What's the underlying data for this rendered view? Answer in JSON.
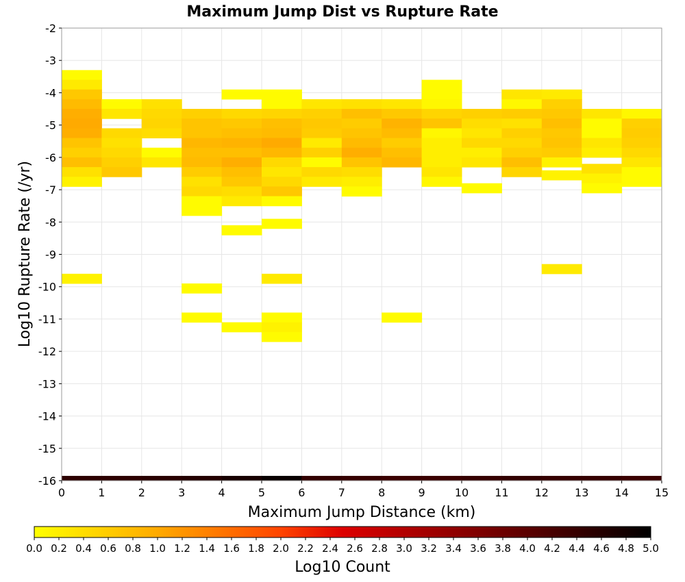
{
  "chart_data": {
    "type": "heatmap",
    "title": "Maximum Jump Dist vs Rupture Rate",
    "xlabel": "Maximum Jump Distance (km)",
    "ylabel": "Log10 Rupture Rate (/yr)",
    "xlim": [
      0,
      15
    ],
    "ylim": [
      -16,
      -2
    ],
    "x_ticks": [
      "0",
      "1",
      "2",
      "3",
      "4",
      "5",
      "6",
      "7",
      "8",
      "9",
      "10",
      "11",
      "12",
      "13",
      "14",
      "15"
    ],
    "y_ticks": [
      "-2",
      "-3",
      "-4",
      "-5",
      "-6",
      "-7",
      "-8",
      "-9",
      "-10",
      "-11",
      "-12",
      "-13",
      "-14",
      "-15",
      "-16"
    ],
    "grid": true,
    "colorbar": {
      "label": "Log10 Count",
      "range": [
        0,
        5
      ],
      "ticks": [
        "0.0",
        "0.2",
        "0.4",
        "0.6",
        "0.8",
        "1.0",
        "1.2",
        "1.4",
        "1.6",
        "1.8",
        "2.0",
        "2.2",
        "2.4",
        "2.6",
        "2.8",
        "3.0",
        "3.2",
        "3.4",
        "3.6",
        "3.8",
        "4.0",
        "4.2",
        "4.4",
        "4.6",
        "4.8",
        "5.0"
      ],
      "colors": [
        "#ffff00",
        "#ffaa00",
        "#ff4400",
        "#dd0000",
        "#880000",
        "#000000"
      ]
    },
    "bin_width_x": 1,
    "bin_height_y": 0.3,
    "cells": [
      [
        0,
        -3.45,
        0.05
      ],
      [
        0,
        -3.75,
        0.25
      ],
      [
        0,
        -4.05,
        0.65
      ],
      [
        0,
        -4.35,
        0.8
      ],
      [
        0,
        -4.65,
        0.95
      ],
      [
        0,
        -4.95,
        1.0
      ],
      [
        0,
        -5.25,
        0.95
      ],
      [
        0,
        -5.55,
        0.7
      ],
      [
        0,
        -5.85,
        0.55
      ],
      [
        0,
        -6.15,
        0.75
      ],
      [
        0,
        -6.45,
        0.35
      ],
      [
        0,
        -6.75,
        0.15
      ],
      [
        0,
        -9.75,
        0.15
      ],
      [
        1,
        -4.35,
        0.05
      ],
      [
        1,
        -4.65,
        0.3
      ],
      [
        1,
        -5.25,
        0.45
      ],
      [
        1,
        -5.55,
        0.35
      ],
      [
        1,
        -5.85,
        0.45
      ],
      [
        1,
        -6.15,
        0.55
      ],
      [
        1,
        -6.45,
        0.65
      ],
      [
        2,
        -4.35,
        0.35
      ],
      [
        2,
        -4.65,
        0.45
      ],
      [
        2,
        -4.95,
        0.5
      ],
      [
        2,
        -5.25,
        0.4
      ],
      [
        2,
        -5.85,
        0.05
      ],
      [
        2,
        -6.15,
        0.3
      ],
      [
        3,
        -4.65,
        0.55
      ],
      [
        3,
        -4.95,
        0.7
      ],
      [
        3,
        -5.25,
        0.7
      ],
      [
        3,
        -5.55,
        0.85
      ],
      [
        3,
        -5.85,
        0.75
      ],
      [
        3,
        -6.15,
        0.8
      ],
      [
        3,
        -6.45,
        0.6
      ],
      [
        3,
        -6.75,
        0.35
      ],
      [
        3,
        -7.05,
        0.45
      ],
      [
        3,
        -7.35,
        0.05
      ],
      [
        3,
        -7.65,
        0.05
      ],
      [
        3,
        -10.05,
        0.05
      ],
      [
        3,
        -10.95,
        0.05
      ],
      [
        4,
        -4.05,
        0.05
      ],
      [
        4,
        -4.65,
        0.45
      ],
      [
        4,
        -4.95,
        0.65
      ],
      [
        4,
        -5.25,
        0.75
      ],
      [
        4,
        -5.55,
        0.9
      ],
      [
        4,
        -5.85,
        0.75
      ],
      [
        4,
        -6.15,
        0.95
      ],
      [
        4,
        -6.45,
        0.75
      ],
      [
        4,
        -6.75,
        0.65
      ],
      [
        4,
        -7.05,
        0.4
      ],
      [
        4,
        -7.35,
        0.25
      ],
      [
        4,
        -8.25,
        0.05
      ],
      [
        4,
        -11.25,
        0.05
      ],
      [
        5,
        -4.05,
        0.05
      ],
      [
        5,
        -4.35,
        0.05
      ],
      [
        5,
        -4.65,
        0.5
      ],
      [
        5,
        -4.95,
        0.75
      ],
      [
        5,
        -5.25,
        0.8
      ],
      [
        5,
        -5.55,
        1.0
      ],
      [
        5,
        -5.85,
        0.85
      ],
      [
        5,
        -6.15,
        0.45
      ],
      [
        5,
        -6.45,
        0.3
      ],
      [
        5,
        -6.75,
        0.45
      ],
      [
        5,
        -7.05,
        0.65
      ],
      [
        5,
        -7.35,
        0.05
      ],
      [
        5,
        -8.05,
        0.05
      ],
      [
        5,
        -9.75,
        0.25
      ],
      [
        5,
        -10.95,
        0.05
      ],
      [
        5,
        -11.25,
        0.15
      ],
      [
        5,
        -11.55,
        0.05
      ],
      [
        6,
        -4.35,
        0.3
      ],
      [
        6,
        -4.65,
        0.55
      ],
      [
        6,
        -4.95,
        0.65
      ],
      [
        6,
        -5.25,
        0.6
      ],
      [
        6,
        -5.55,
        0.25
      ],
      [
        6,
        -5.85,
        0.55
      ],
      [
        6,
        -6.15,
        0.05
      ],
      [
        6,
        -6.45,
        0.45
      ],
      [
        6,
        -6.75,
        0.25
      ],
      [
        7,
        -4.35,
        0.35
      ],
      [
        7,
        -4.65,
        0.75
      ],
      [
        7,
        -4.95,
        0.6
      ],
      [
        7,
        -5.25,
        0.7
      ],
      [
        7,
        -5.55,
        0.8
      ],
      [
        7,
        -5.85,
        0.95
      ],
      [
        7,
        -6.15,
        0.7
      ],
      [
        7,
        -6.45,
        0.4
      ],
      [
        7,
        -6.75,
        0.2
      ],
      [
        7,
        -7.05,
        0.05
      ],
      [
        8,
        -4.35,
        0.3
      ],
      [
        8,
        -4.65,
        0.65
      ],
      [
        8,
        -4.95,
        0.9
      ],
      [
        8,
        -5.25,
        0.8
      ],
      [
        8,
        -5.55,
        0.6
      ],
      [
        8,
        -5.85,
        0.75
      ],
      [
        8,
        -6.15,
        0.85
      ],
      [
        8,
        -10.95,
        0.05
      ],
      [
        9,
        -3.75,
        0.05
      ],
      [
        9,
        -4.05,
        0.05
      ],
      [
        9,
        -4.35,
        0.1
      ],
      [
        9,
        -4.65,
        0.5
      ],
      [
        9,
        -4.95,
        0.7
      ],
      [
        9,
        -5.25,
        0.1
      ],
      [
        9,
        -5.55,
        0.2
      ],
      [
        9,
        -5.85,
        0.2
      ],
      [
        9,
        -6.15,
        0.2
      ],
      [
        9,
        -6.45,
        0.3
      ],
      [
        9,
        -6.75,
        0.1
      ],
      [
        10,
        -4.65,
        0.55
      ],
      [
        10,
        -4.95,
        0.4
      ],
      [
        10,
        -5.25,
        0.3
      ],
      [
        10,
        -5.55,
        0.45
      ],
      [
        10,
        -5.85,
        0.2
      ],
      [
        10,
        -6.15,
        0.3
      ],
      [
        10,
        -6.95,
        0.05
      ],
      [
        11,
        -4.05,
        0.3
      ],
      [
        11,
        -4.35,
        0.1
      ],
      [
        11,
        -4.65,
        0.6
      ],
      [
        11,
        -4.95,
        0.35
      ],
      [
        11,
        -5.25,
        0.55
      ],
      [
        11,
        -5.55,
        0.45
      ],
      [
        11,
        -5.85,
        0.55
      ],
      [
        11,
        -6.15,
        0.75
      ],
      [
        11,
        -6.45,
        0.5
      ],
      [
        12,
        -4.05,
        0.25
      ],
      [
        12,
        -4.35,
        0.55
      ],
      [
        12,
        -4.65,
        0.65
      ],
      [
        12,
        -4.95,
        0.75
      ],
      [
        12,
        -5.25,
        0.65
      ],
      [
        12,
        -5.55,
        0.7
      ],
      [
        12,
        -5.85,
        0.6
      ],
      [
        12,
        -6.15,
        0.15
      ],
      [
        12,
        -6.55,
        0.15
      ],
      [
        12,
        -9.45,
        0.25
      ],
      [
        13,
        -4.65,
        0.3
      ],
      [
        13,
        -4.95,
        0.05
      ],
      [
        13,
        -5.25,
        0.05
      ],
      [
        13,
        -5.55,
        0.3
      ],
      [
        13,
        -5.85,
        0.2
      ],
      [
        13,
        -6.35,
        0.35
      ],
      [
        13,
        -6.65,
        0.15
      ],
      [
        13,
        -6.95,
        0.05
      ],
      [
        14,
        -4.65,
        0.1
      ],
      [
        14,
        -4.95,
        0.55
      ],
      [
        14,
        -5.25,
        0.6
      ],
      [
        14,
        -5.55,
        0.55
      ],
      [
        14,
        -5.85,
        0.45
      ],
      [
        14,
        -6.15,
        0.3
      ],
      [
        14,
        -6.45,
        0.05
      ],
      [
        14,
        -6.75,
        0.05
      ]
    ],
    "bottom_row": {
      "y": -16,
      "values": [
        4.5,
        4.5,
        4.55,
        4.6,
        4.75,
        4.9,
        4.45,
        4.4,
        4.35,
        4.35,
        4.4,
        4.45,
        4.4,
        4.4,
        4.35
      ]
    }
  }
}
